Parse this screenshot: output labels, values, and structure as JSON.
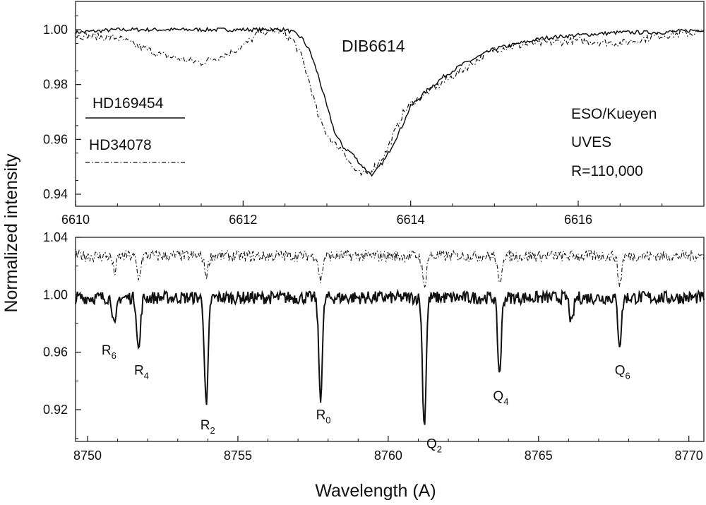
{
  "chart_data": [
    {
      "type": "line",
      "panel": "top",
      "title": "DIB6614",
      "xlim": [
        6610,
        6617.5
      ],
      "ylim": [
        0.94,
        1.01
      ],
      "x_ticks": [
        6610,
        6612,
        6614,
        6616
      ],
      "x_tick_labels": [
        "6610",
        "6612",
        "6614",
        "6616"
      ],
      "y_ticks": [
        0.94,
        0.96,
        0.98,
        1.0
      ],
      "y_tick_labels": [
        "0.94",
        "0.96",
        "0.98",
        "1.00"
      ],
      "legend": {
        "placement": "left",
        "entries": [
          {
            "label": "HD169454",
            "style": "solid"
          },
          {
            "label": "HD34078",
            "style": "dash-dot"
          }
        ]
      },
      "annotations": [
        "ESO/Kueyen",
        "UVES",
        "R=110,000"
      ],
      "series": [
        {
          "name": "HD169454",
          "style": "solid",
          "x": [
            6610.0,
            6610.5,
            6611.0,
            6611.5,
            6612.0,
            6612.3,
            6612.5,
            6612.6,
            6612.7,
            6612.8,
            6612.9,
            6613.0,
            6613.1,
            6613.2,
            6613.3,
            6613.4,
            6613.5,
            6613.55,
            6613.6,
            6613.7,
            6613.8,
            6613.9,
            6614.0,
            6614.2,
            6614.4,
            6614.6,
            6614.8,
            6615.0,
            6615.3,
            6615.6,
            6616.0,
            6616.5,
            6617.0,
            6617.5
          ],
          "y": [
            0.999,
            1.0,
            1.0,
            1.0,
            1.0,
            1.0,
            1.0,
            0.999,
            0.997,
            0.992,
            0.983,
            0.972,
            0.962,
            0.957,
            0.955,
            0.951,
            0.948,
            0.947,
            0.949,
            0.953,
            0.959,
            0.965,
            0.972,
            0.978,
            0.983,
            0.987,
            0.99,
            0.993,
            0.995,
            0.997,
            0.998,
            0.999,
            0.999,
            1.0
          ]
        },
        {
          "name": "HD34078",
          "style": "dash-dot",
          "x": [
            6610.0,
            6610.5,
            6611.0,
            6611.3,
            6611.5,
            6611.8,
            6612.0,
            6612.2,
            6612.4,
            6612.6,
            6612.7,
            6612.8,
            6612.9,
            6613.0,
            6613.1,
            6613.2,
            6613.3,
            6613.4,
            6613.5,
            6613.6,
            6613.7,
            6613.8,
            6613.9,
            6614.0,
            6614.2,
            6614.4,
            6614.6,
            6614.8,
            6615.0,
            6615.5,
            6616.0,
            6616.5,
            6617.0,
            6617.5
          ],
          "y": [
            0.998,
            0.997,
            0.991,
            0.989,
            0.988,
            0.991,
            0.994,
            0.999,
            1.0,
            0.996,
            0.99,
            0.98,
            0.968,
            0.962,
            0.958,
            0.956,
            0.95,
            0.947,
            0.948,
            0.951,
            0.955,
            0.962,
            0.969,
            0.973,
            0.977,
            0.981,
            0.985,
            0.989,
            0.993,
            0.995,
            0.996,
            0.995,
            0.998,
            0.999
          ]
        }
      ]
    },
    {
      "type": "line",
      "panel": "bottom",
      "xlabel": "Wavelength (A)",
      "ylabel": "Normalized intensity",
      "xlim": [
        8749.6,
        8770.5
      ],
      "ylim": [
        0.9,
        1.04
      ],
      "x_ticks": [
        8750,
        8755,
        8760,
        8765,
        8770
      ],
      "x_tick_labels": [
        "8750",
        "8755",
        "8760",
        "8765",
        "8770"
      ],
      "y_ticks": [
        0.92,
        0.96,
        1.0,
        1.04
      ],
      "y_tick_labels": [
        "0.92",
        "0.96",
        "1.00",
        "1.04"
      ],
      "series": [
        {
          "name": "HD169454",
          "style": "solid",
          "continuum": 0.998,
          "lines": [
            {
              "x": 8750.9,
              "y": 0.977,
              "label": "R",
              "sub": "6"
            },
            {
              "x": 8751.7,
              "y": 0.961,
              "label": "R",
              "sub": "4"
            },
            {
              "x": 8753.95,
              "y": 0.921,
              "label": "R",
              "sub": "2"
            },
            {
              "x": 8757.75,
              "y": 0.929,
              "label": "R",
              "sub": "0"
            },
            {
              "x": 8761.2,
              "y": 0.909,
              "label": "Q",
              "sub": "2"
            },
            {
              "x": 8763.7,
              "y": 0.945,
              "label": "Q",
              "sub": "4"
            },
            {
              "x": 8766.1,
              "y": 0.979,
              "label": "",
              "sub": ""
            },
            {
              "x": 8767.7,
              "y": 0.966,
              "label": "Q",
              "sub": "6"
            }
          ]
        },
        {
          "name": "HD34078",
          "style": "dash-dot",
          "continuum": 1.027,
          "lines": [
            {
              "x": 8750.9,
              "y": 1.016,
              "label": "",
              "sub": ""
            },
            {
              "x": 8751.7,
              "y": 1.011,
              "label": "",
              "sub": ""
            },
            {
              "x": 8753.95,
              "y": 1.014,
              "label": "",
              "sub": ""
            },
            {
              "x": 8757.75,
              "y": 1.01,
              "label": "",
              "sub": ""
            },
            {
              "x": 8761.2,
              "y": 1.005,
              "label": "",
              "sub": ""
            },
            {
              "x": 8763.7,
              "y": 1.006,
              "label": "",
              "sub": ""
            },
            {
              "x": 8767.7,
              "y": 1.007,
              "label": "",
              "sub": ""
            }
          ]
        }
      ]
    }
  ]
}
